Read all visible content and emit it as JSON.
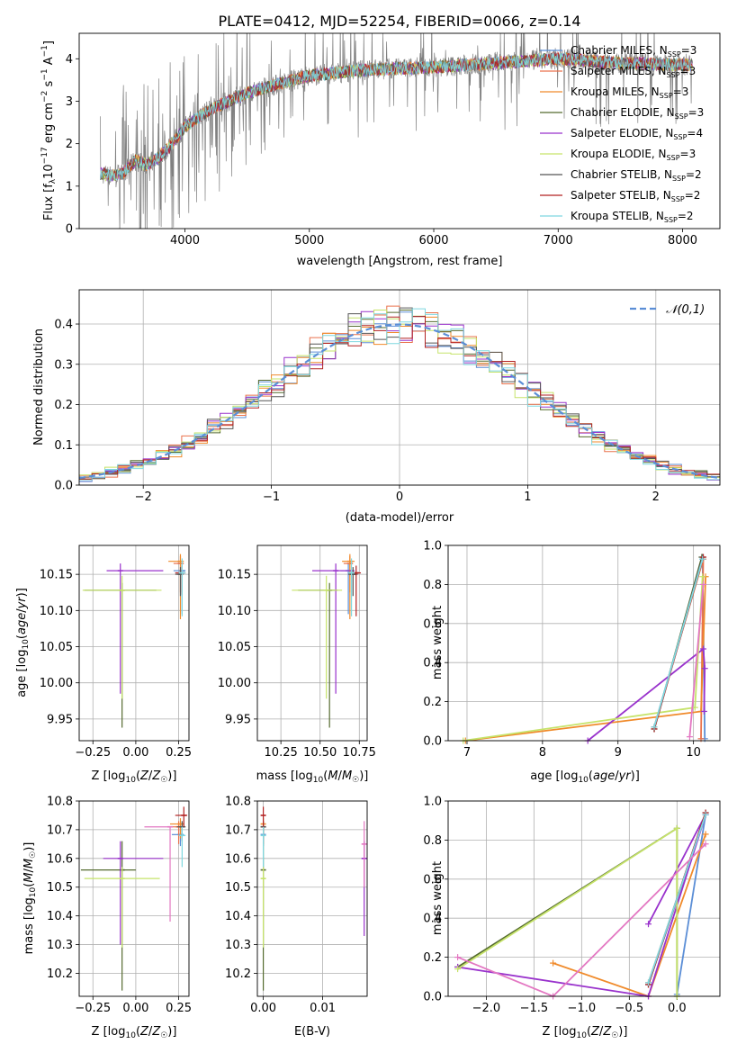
{
  "figure": {
    "title": "PLATE=0412, MJD=52254, FIBERID=0066, z=0.14"
  },
  "models": [
    {
      "label": "Chabrier MILES, N",
      "sub": "SSP",
      "tail": "=3",
      "color": "#5b8ed6"
    },
    {
      "label": "Salpeter MILES, N",
      "sub": "SSP",
      "tail": "=3",
      "color": "#e9724c"
    },
    {
      "label": "Kroupa MILES, N",
      "sub": "SSP",
      "tail": "=3",
      "color": "#f08a2a"
    },
    {
      "label": "Chabrier ELODIE, N",
      "sub": "SSP",
      "tail": "=3",
      "color": "#556b2f"
    },
    {
      "label": "Salpeter ELODIE, N",
      "sub": "SSP",
      "tail": "=4",
      "color": "#9932cc"
    },
    {
      "label": "Kroupa ELODIE, N",
      "sub": "SSP",
      "tail": "=3",
      "color": "#c6e36a"
    },
    {
      "label": "Chabrier STELIB, N",
      "sub": "SSP",
      "tail": "=2",
      "color": "#555555"
    },
    {
      "label": "Salpeter STELIB, N",
      "sub": "SSP",
      "tail": "=2",
      "color": "#b22222"
    },
    {
      "label": "Kroupa STELIB, N",
      "sub": "SSP",
      "tail": "=2",
      "color": "#7fd8e0"
    }
  ],
  "chart_data": [
    {
      "id": "spectrum",
      "type": "line",
      "xlabel": "wavelength [Angstrom, rest frame]",
      "ylabel": "Flux [f_λ 10^-17 erg cm^-2 s^-1 A^-1]",
      "xlim": [
        3150,
        8300
      ],
      "ylim": [
        0,
        4.6
      ],
      "xticks": [
        4000,
        5000,
        6000,
        7000,
        8000
      ],
      "yticks": [
        0,
        1,
        2,
        3,
        4
      ],
      "grid": false,
      "legend": "top-right",
      "x_start": 3320,
      "x_end": 8080,
      "continuum_points": [
        [
          3320,
          1.3
        ],
        [
          3400,
          1.25
        ],
        [
          3500,
          1.3
        ],
        [
          3600,
          1.6
        ],
        [
          3700,
          1.5
        ],
        [
          3800,
          1.7
        ],
        [
          3900,
          2.0
        ],
        [
          4000,
          2.4
        ],
        [
          4200,
          2.8
        ],
        [
          4500,
          3.2
        ],
        [
          5000,
          3.6
        ],
        [
          5500,
          3.75
        ],
        [
          6000,
          3.8
        ],
        [
          6500,
          3.9
        ],
        [
          7000,
          4.0
        ],
        [
          7500,
          3.9
        ],
        [
          8080,
          3.85
        ]
      ]
    },
    {
      "id": "residuals",
      "type": "histogram",
      "xlabel": "(data-model)/error",
      "ylabel": "Normed distribution",
      "xlim": [
        -2.5,
        2.5
      ],
      "ylim": [
        0,
        0.485
      ],
      "xticks": [
        -2,
        -1,
        0,
        1,
        2
      ],
      "yticks": [
        0.0,
        0.1,
        0.2,
        0.3,
        0.4
      ],
      "grid": true,
      "bin_width": 0.1,
      "reference_curve": {
        "label": "𝒩(0,1)",
        "mean": 0,
        "sigma": 1
      },
      "legend": "top-right"
    },
    {
      "id": "age_vs_Z",
      "type": "errorbar",
      "xlabel": "Z [log10(Z/Z☉)]",
      "ylabel": "age  [log10(age/yr)]",
      "xlim": [
        -0.33,
        0.31
      ],
      "ylim": [
        9.92,
        10.19
      ],
      "xticks": [
        -0.25,
        0.0,
        0.25
      ],
      "yticks": [
        9.95,
        10.0,
        10.05,
        10.1,
        10.15
      ],
      "grid": true,
      "points": [
        {
          "m": 0,
          "x": 0.27,
          "y": 10.155,
          "ex": [
            0.05,
            0.02
          ],
          "ey": [
            0.06,
            0.01
          ]
        },
        {
          "m": 1,
          "x": 0.26,
          "y": 10.165,
          "ex": [
            0.04,
            0.02
          ],
          "ey": [
            0.04,
            0.01
          ]
        },
        {
          "m": 2,
          "x": 0.26,
          "y": 10.168,
          "ex": [
            0.07,
            0.02
          ],
          "ey": [
            0.08,
            0.01
          ]
        },
        {
          "m": 3,
          "x": -0.08,
          "y": 10.128,
          "ex": [
            0.22,
            0.2
          ],
          "ey": [
            0.19,
            0.01
          ]
        },
        {
          "m": 4,
          "x": -0.09,
          "y": 10.155,
          "ex": [
            0.08,
            0.25
          ],
          "ey": [
            0.17,
            0.01
          ]
        },
        {
          "m": 5,
          "x": -0.08,
          "y": 10.128,
          "ex": [
            0.23,
            0.23
          ],
          "ey": [
            0.15,
            0.02
          ]
        },
        {
          "m": 6,
          "x": 0.26,
          "y": 10.15,
          "ex": [
            0.03,
            0.01
          ],
          "ey": [
            0.03,
            0.01
          ]
        },
        {
          "m": 7,
          "x": 0.27,
          "y": 10.152,
          "ex": [
            0.04,
            0.02
          ],
          "ey": [
            0.03,
            0.01
          ]
        },
        {
          "m": 8,
          "x": 0.27,
          "y": 10.152,
          "ex": [
            0.02,
            0.02
          ],
          "ey": [
            0.06,
            0.02
          ]
        }
      ]
    },
    {
      "id": "age_vs_mass",
      "type": "errorbar",
      "xlabel": "mass [log10(M/M☉)]",
      "ylabel": "",
      "xlim": [
        10.1,
        10.8
      ],
      "ylim": [
        9.92,
        10.19
      ],
      "xticks": [
        10.25,
        10.5,
        10.75
      ],
      "yticks": [
        9.95,
        10.0,
        10.05,
        10.1,
        10.15
      ],
      "grid": true,
      "points": [
        {
          "m": 0,
          "x": 10.68,
          "y": 10.155,
          "ex": [
            0.05,
            0.03
          ],
          "ey": [
            0.06,
            0.01
          ]
        },
        {
          "m": 1,
          "x": 10.69,
          "y": 10.165,
          "ex": [
            0.04,
            0.02
          ],
          "ey": [
            0.04,
            0.01
          ]
        },
        {
          "m": 2,
          "x": 10.69,
          "y": 10.168,
          "ex": [
            0.05,
            0.03
          ],
          "ey": [
            0.08,
            0.01
          ]
        },
        {
          "m": 3,
          "x": 10.56,
          "y": 10.128,
          "ex": [
            0.2,
            0.05
          ],
          "ey": [
            0.19,
            0.01
          ]
        },
        {
          "m": 4,
          "x": 10.6,
          "y": 10.155,
          "ex": [
            0.15,
            0.12
          ],
          "ey": [
            0.17,
            0.01
          ]
        },
        {
          "m": 5,
          "x": 10.54,
          "y": 10.128,
          "ex": [
            0.22,
            0.1
          ],
          "ey": [
            0.15,
            0.02
          ]
        },
        {
          "m": 6,
          "x": 10.71,
          "y": 10.15,
          "ex": [
            0.03,
            0.03
          ],
          "ey": [
            0.03,
            0.01
          ]
        },
        {
          "m": 7,
          "x": 10.73,
          "y": 10.152,
          "ex": [
            0.05,
            0.03
          ],
          "ey": [
            0.06,
            0.01
          ]
        },
        {
          "m": 8,
          "x": 10.7,
          "y": 10.152,
          "ex": [
            0.02,
            0.02
          ],
          "ey": [
            0.06,
            0.02
          ]
        }
      ]
    },
    {
      "id": "weight_vs_age",
      "type": "line",
      "xlabel": "age  [log10(age/yr)]",
      "ylabel": "mass weight",
      "xlim": [
        6.75,
        10.35
      ],
      "ylim": [
        0,
        1.0
      ],
      "xticks": [
        7,
        8,
        9,
        10
      ],
      "yticks": [
        0.0,
        0.2,
        0.4,
        0.6,
        0.8,
        1.0
      ],
      "grid": true,
      "series": [
        {
          "m": 0,
          "points": [
            [
              9.48,
              0.07
            ],
            [
              10.12,
              0.93
            ],
            [
              10.15,
              0.01
            ]
          ]
        },
        {
          "m": 1,
          "points": [
            [
              9.48,
              0.07
            ],
            [
              10.13,
              0.93
            ],
            [
              10.1,
              0.01
            ]
          ]
        },
        {
          "m": 2,
          "points": [
            [
              6.98,
              0.0
            ],
            [
              10.1,
              0.15
            ],
            [
              10.16,
              0.84
            ]
          ]
        },
        {
          "m": 3,
          "points": [
            [
              9.48,
              0.06
            ],
            [
              10.11,
              0.94
            ]
          ]
        },
        {
          "m": 4,
          "points": [
            [
              8.6,
              0.0
            ],
            [
              10.13,
              0.47
            ],
            [
              10.15,
              0.37
            ],
            [
              10.14,
              0.15
            ]
          ]
        },
        {
          "m": 5,
          "points": [
            [
              6.95,
              0.0
            ],
            [
              10.02,
              0.17
            ],
            [
              10.12,
              0.84
            ]
          ]
        },
        {
          "m": 6,
          "points": [
            [
              9.48,
              0.06
            ],
            [
              10.12,
              0.94
            ]
          ]
        },
        {
          "m": 7,
          "points": [
            [
              9.48,
              0.06
            ],
            [
              10.13,
              0.94
            ]
          ]
        },
        {
          "m": 8,
          "points": [
            [
              9.48,
              0.07
            ],
            [
              10.12,
              0.93
            ]
          ]
        }
      ],
      "extra_pink": [
        [
          9.95,
          0.02
        ],
        [
          10.13,
          0.8
        ]
      ]
    },
    {
      "id": "mass_vs_Z",
      "type": "errorbar",
      "xlabel": "Z [log10(Z/Z☉)]",
      "ylabel": "mass [log10(M/M☉)]",
      "xlim": [
        -0.33,
        0.31
      ],
      "ylim": [
        10.12,
        10.8
      ],
      "xticks": [
        -0.25,
        0.0,
        0.25
      ],
      "yticks": [
        10.2,
        10.3,
        10.4,
        10.5,
        10.6,
        10.7,
        10.8
      ],
      "grid": true,
      "points": [
        {
          "m": 0,
          "x": 0.26,
          "y": 10.683,
          "ex": [
            0.05,
            0.02
          ],
          "ey": [
            0.04,
            0.03
          ]
        },
        {
          "m": 1,
          "x": 0.25,
          "y": 10.71,
          "ex": [
            0.05,
            0.02
          ],
          "ey": [
            0.06,
            0.02
          ]
        },
        {
          "m": 2,
          "x": 0.26,
          "y": 10.72,
          "ex": [
            0.06,
            0.02
          ],
          "ey": [
            0.05,
            0.02
          ]
        },
        {
          "m": 3,
          "x": -0.08,
          "y": 10.56,
          "ex": [
            0.24,
            0.08
          ],
          "ey": [
            0.42,
            0.1
          ]
        },
        {
          "m": 4,
          "x": -0.09,
          "y": 10.6,
          "ex": [
            0.1,
            0.25
          ],
          "ey": [
            0.3,
            0.06
          ]
        },
        {
          "m": 5,
          "x": -0.08,
          "y": 10.53,
          "ex": [
            0.22,
            0.22
          ],
          "ey": [
            0.24,
            0.04
          ]
        },
        {
          "m": 6,
          "x": 0.27,
          "y": 10.71,
          "ex": [
            0.03,
            0.02
          ],
          "ey": [
            0.05,
            0.02
          ]
        },
        {
          "m": 7,
          "x": 0.28,
          "y": 10.75,
          "ex": [
            0.05,
            0.02
          ],
          "ey": [
            0.04,
            0.03
          ]
        },
        {
          "m": 8,
          "x": 0.27,
          "y": 10.68,
          "ex": [
            0.02,
            0.02
          ],
          "ey": [
            0.11,
            0.03
          ]
        }
      ],
      "extra_pink": {
        "x": 0.2,
        "y": 10.71,
        "ex": [
          0.15,
          0.0
        ],
        "ey": [
          0.33,
          0.0
        ]
      }
    },
    {
      "id": "mass_vs_ebv",
      "type": "errorbar",
      "xlabel": "E(B-V)",
      "ylabel": "",
      "xlim": [
        -0.001,
        0.0175
      ],
      "ylim": [
        10.12,
        10.8
      ],
      "xticks": [
        0.0,
        0.01
      ],
      "yticks": [
        10.2,
        10.3,
        10.4,
        10.5,
        10.6,
        10.7,
        10.8
      ],
      "grid": true,
      "points": [
        {
          "m": 0,
          "x": 0.0,
          "y": 10.683,
          "ex": [
            0,
            0
          ],
          "ey": [
            0.04,
            0.03
          ]
        },
        {
          "m": 1,
          "x": 0.0,
          "y": 10.71,
          "ex": [
            0,
            0
          ],
          "ey": [
            0.06,
            0.02
          ]
        },
        {
          "m": 2,
          "x": 0.0,
          "y": 10.72,
          "ex": [
            0,
            0
          ],
          "ey": [
            0.05,
            0.02
          ]
        },
        {
          "m": 3,
          "x": 0.0,
          "y": 10.56,
          "ex": [
            0,
            0
          ],
          "ey": [
            0.42,
            0.1
          ]
        },
        {
          "m": 4,
          "x": 0.017,
          "y": 10.6,
          "ex": [
            0,
            0
          ],
          "ey": [
            0.27,
            0.06
          ]
        },
        {
          "m": 5,
          "x": 0.0,
          "y": 10.53,
          "ex": [
            0,
            0
          ],
          "ey": [
            0.24,
            0.04
          ]
        },
        {
          "m": 6,
          "x": 0.0,
          "y": 10.71,
          "ex": [
            0,
            0
          ],
          "ey": [
            0.05,
            0.02
          ]
        },
        {
          "m": 7,
          "x": 0.0,
          "y": 10.75,
          "ex": [
            0,
            0
          ],
          "ey": [
            0.04,
            0.03
          ]
        },
        {
          "m": 8,
          "x": 0.0,
          "y": 10.68,
          "ex": [
            0,
            0
          ],
          "ey": [
            0.11,
            0.03
          ]
        }
      ],
      "extra_pink": {
        "x": 0.017,
        "y": 10.65,
        "ex": [
          0,
          0
        ],
        "ey": [
          0.15,
          0.08
        ]
      }
    },
    {
      "id": "weight_vs_Z",
      "type": "line",
      "xlabel": "Z [log10(Z/Z☉)]",
      "ylabel": "mass weight",
      "xlim": [
        -2.4,
        0.45
      ],
      "ylim": [
        0,
        1.0
      ],
      "xticks": [
        -2.0,
        -1.5,
        -1.0,
        -0.5,
        0.0
      ],
      "yticks": [
        0.0,
        0.2,
        0.4,
        0.6,
        0.8,
        1.0
      ],
      "grid": true,
      "series": [
        {
          "m": 0,
          "points": [
            [
              -0.3,
              0.06
            ],
            [
              0.3,
              0.93
            ],
            [
              0.0,
              0.01
            ]
          ]
        },
        {
          "m": 1,
          "points": [
            [
              -0.3,
              0.07
            ],
            [
              0.3,
              0.93
            ]
          ]
        },
        {
          "m": 2,
          "points": [
            [
              -1.3,
              0.17
            ],
            [
              -0.3,
              0.0
            ],
            [
              0.3,
              0.83
            ]
          ]
        },
        {
          "m": 3,
          "points": [
            [
              -2.3,
              0.15
            ],
            [
              0.0,
              0.86
            ],
            [
              0.0,
              0.0
            ]
          ]
        },
        {
          "m": 4,
          "points": [
            [
              -2.3,
              0.15
            ],
            [
              -0.3,
              0.0
            ],
            [
              0.3,
              0.93
            ],
            [
              -0.3,
              0.37
            ]
          ]
        },
        {
          "m": 5,
          "points": [
            [
              -2.3,
              0.14
            ],
            [
              0.0,
              0.86
            ],
            [
              0.0,
              0.0
            ]
          ]
        },
        {
          "m": 6,
          "points": [
            [
              -0.3,
              0.06
            ],
            [
              0.3,
              0.94
            ]
          ]
        },
        {
          "m": 7,
          "points": [
            [
              -0.3,
              0.06
            ],
            [
              0.3,
              0.94
            ]
          ]
        },
        {
          "m": 8,
          "points": [
            [
              -0.3,
              0.07
            ],
            [
              0.3,
              0.93
            ]
          ]
        }
      ],
      "extra_pink": [
        [
          -2.3,
          0.2
        ],
        [
          -1.3,
          0.0
        ],
        [
          0.3,
          0.78
        ]
      ]
    }
  ]
}
